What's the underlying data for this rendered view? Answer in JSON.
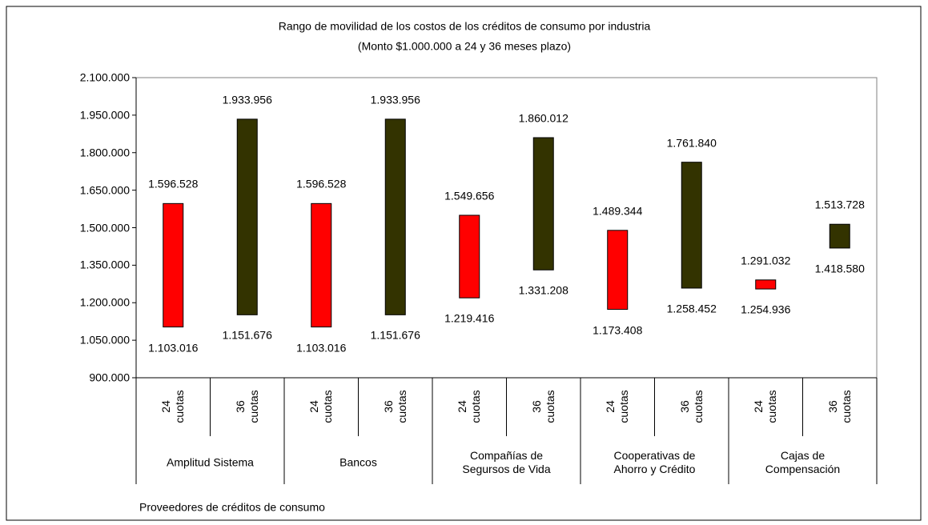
{
  "chart_data": {
    "type": "floating_bar",
    "title": "Rango de movilidad de los costos de los créditos de consumo por industria",
    "subtitle": "(Monto $1.000.000 a 24 y 36 meses plazo)",
    "x_label": "Proveedores de créditos de consumo",
    "categories": [
      "Amplitud Sistema",
      "Bancos",
      "Compañías de Segursos de Vida",
      "Cooperativas de Ahorro y Crédito",
      "Cajas de Compensación"
    ],
    "series": [
      {
        "name": "24 cuotas",
        "color": "#ff0000",
        "low": [
          1103016,
          1103016,
          1219416,
          1173408,
          1254936
        ],
        "high": [
          1596528,
          1596528,
          1549656,
          1489344,
          1291032
        ],
        "low_labels": [
          "1.103.016",
          "1.103.016",
          "1.219.416",
          "1.173.408",
          "1.254.936"
        ],
        "high_labels": [
          "1.596.528",
          "1.596.528",
          "1.549.656",
          "1.489.344",
          "1.291.032"
        ]
      },
      {
        "name": "36 cuotas",
        "color": "#333300",
        "low": [
          1151676,
          1151676,
          1331208,
          1258452,
          1418580
        ],
        "high": [
          1933956,
          1933956,
          1860012,
          1761840,
          1513728
        ],
        "low_labels": [
          "1.151.676",
          "1.151.676",
          "1.331.208",
          "1.258.452",
          "1.418.580"
        ],
        "high_labels": [
          "1.933.956",
          "1.933.956",
          "1.860.012",
          "1.761.840",
          "1.513.728"
        ]
      }
    ],
    "ylim": [
      900000,
      2100000
    ],
    "yticks": [
      {
        "value": 900000,
        "label": "900.000"
      },
      {
        "value": 1050000,
        "label": "1.050.000"
      },
      {
        "value": 1200000,
        "label": "1.200.000"
      },
      {
        "value": 1350000,
        "label": "1.350.000"
      },
      {
        "value": 1500000,
        "label": "1.500.000"
      },
      {
        "value": 1650000,
        "label": "1.650.000"
      },
      {
        "value": 1800000,
        "label": "1.800.000"
      },
      {
        "value": 1950000,
        "label": "1.950.000"
      },
      {
        "value": 2100000,
        "label": "2.100.000"
      }
    ]
  }
}
